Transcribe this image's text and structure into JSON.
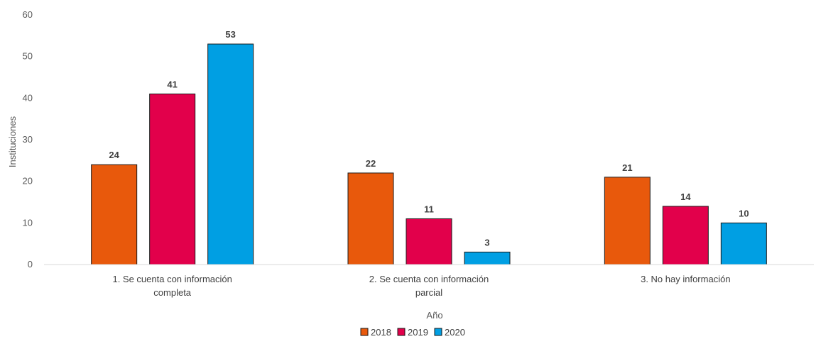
{
  "chart_data": {
    "type": "bar",
    "categories": [
      [
        "1. Se cuenta con información",
        "completa"
      ],
      [
        "2. Se cuenta con información",
        "parcial"
      ],
      [
        "3. No hay información"
      ]
    ],
    "series": [
      {
        "name": "2018",
        "color": "#E8590C",
        "values": [
          24,
          22,
          21
        ]
      },
      {
        "name": "2019",
        "color": "#E2004B",
        "values": [
          41,
          11,
          14
        ]
      },
      {
        "name": "2020",
        "color": "#009FE3",
        "values": [
          53,
          3,
          10
        ]
      }
    ],
    "xlabel": "Año",
    "ylabel": "Instituciones",
    "ylim": [
      0,
      60
    ],
    "yticks": [
      0,
      10,
      20,
      30,
      40,
      50,
      60
    ],
    "grid": false,
    "legend": "bottom"
  }
}
